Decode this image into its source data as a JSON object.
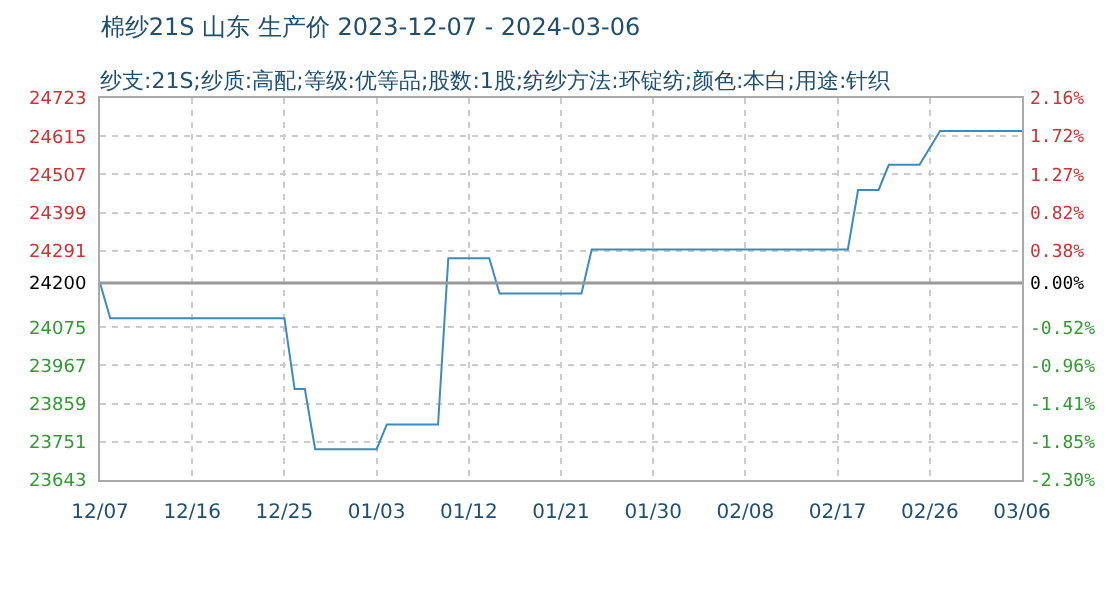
{
  "chart_data": {
    "type": "line",
    "title": "棉纱21S 山东 生产价 2023-12-07 - 2024-03-06",
    "subtitle": "纱支:21S;纱质:高配;等级:优等品;股数:1股;纺纱方法:环锭纺;颜色:本白;用途:针织",
    "x": [
      "2023-12-07",
      "2023-12-08",
      "2023-12-25",
      "2023-12-26",
      "2023-12-27",
      "2023-12-28",
      "2024-01-03",
      "2024-01-04",
      "2024-01-09",
      "2024-01-10",
      "2024-01-14",
      "2024-01-15",
      "2024-01-23",
      "2024-01-24",
      "2024-02-18",
      "2024-02-19",
      "2024-02-21",
      "2024-02-22",
      "2024-02-25",
      "2024-02-27",
      "2024-03-06"
    ],
    "series": [
      {
        "color": "#3d8bbd",
        "values": [
          24200,
          24100,
          24100,
          23900,
          23900,
          23730,
          23730,
          23800,
          23800,
          24270,
          24270,
          24170,
          24170,
          24295,
          24295,
          24463,
          24463,
          24534,
          24534,
          24630,
          24630
        ]
      }
    ],
    "xlim": [
      "2023-12-07",
      "2024-03-06"
    ],
    "xticks": [
      {
        "value": "2023-12-07",
        "label": "12/07"
      },
      {
        "value": "2023-12-16",
        "label": "12/16"
      },
      {
        "value": "2023-12-25",
        "label": "12/25"
      },
      {
        "value": "2024-01-03",
        "label": "01/03"
      },
      {
        "value": "2024-01-12",
        "label": "01/12"
      },
      {
        "value": "2024-01-21",
        "label": "01/21"
      },
      {
        "value": "2024-01-30",
        "label": "01/30"
      },
      {
        "value": "2024-02-08",
        "label": "02/08"
      },
      {
        "value": "2024-02-17",
        "label": "02/17"
      },
      {
        "value": "2024-02-26",
        "label": "02/26"
      },
      {
        "value": "2024-03-06",
        "label": "03/06"
      }
    ],
    "ylim": [
      23643,
      24723
    ],
    "yticks": [
      23643,
      23751,
      23859,
      23967,
      24075,
      24200,
      24291,
      24399,
      24507,
      24615,
      24723
    ],
    "y2lim": [
      -2.3,
      2.16
    ],
    "y2ticks": [
      {
        "value": -2.3,
        "label": "-2.30%"
      },
      {
        "value": -1.85,
        "label": "-1.85%"
      },
      {
        "value": -1.41,
        "label": "-1.41%"
      },
      {
        "value": -0.96,
        "label": "-0.96%"
      },
      {
        "value": -0.52,
        "label": "-0.52%"
      },
      {
        "value": 0,
        "label": "0.00%"
      },
      {
        "value": 0.38,
        "label": "0.38%"
      },
      {
        "value": 0.82,
        "label": "0.82%"
      },
      {
        "value": 1.27,
        "label": "1.27%"
      },
      {
        "value": 1.72,
        "label": "1.72%"
      },
      {
        "value": 2.16,
        "label": "2.16%"
      }
    ],
    "ref_lines": [
      {
        "axis": "y",
        "value": 24200,
        "color": "#999999"
      }
    ],
    "grid": true,
    "marker": "none",
    "line_style": "solid"
  }
}
